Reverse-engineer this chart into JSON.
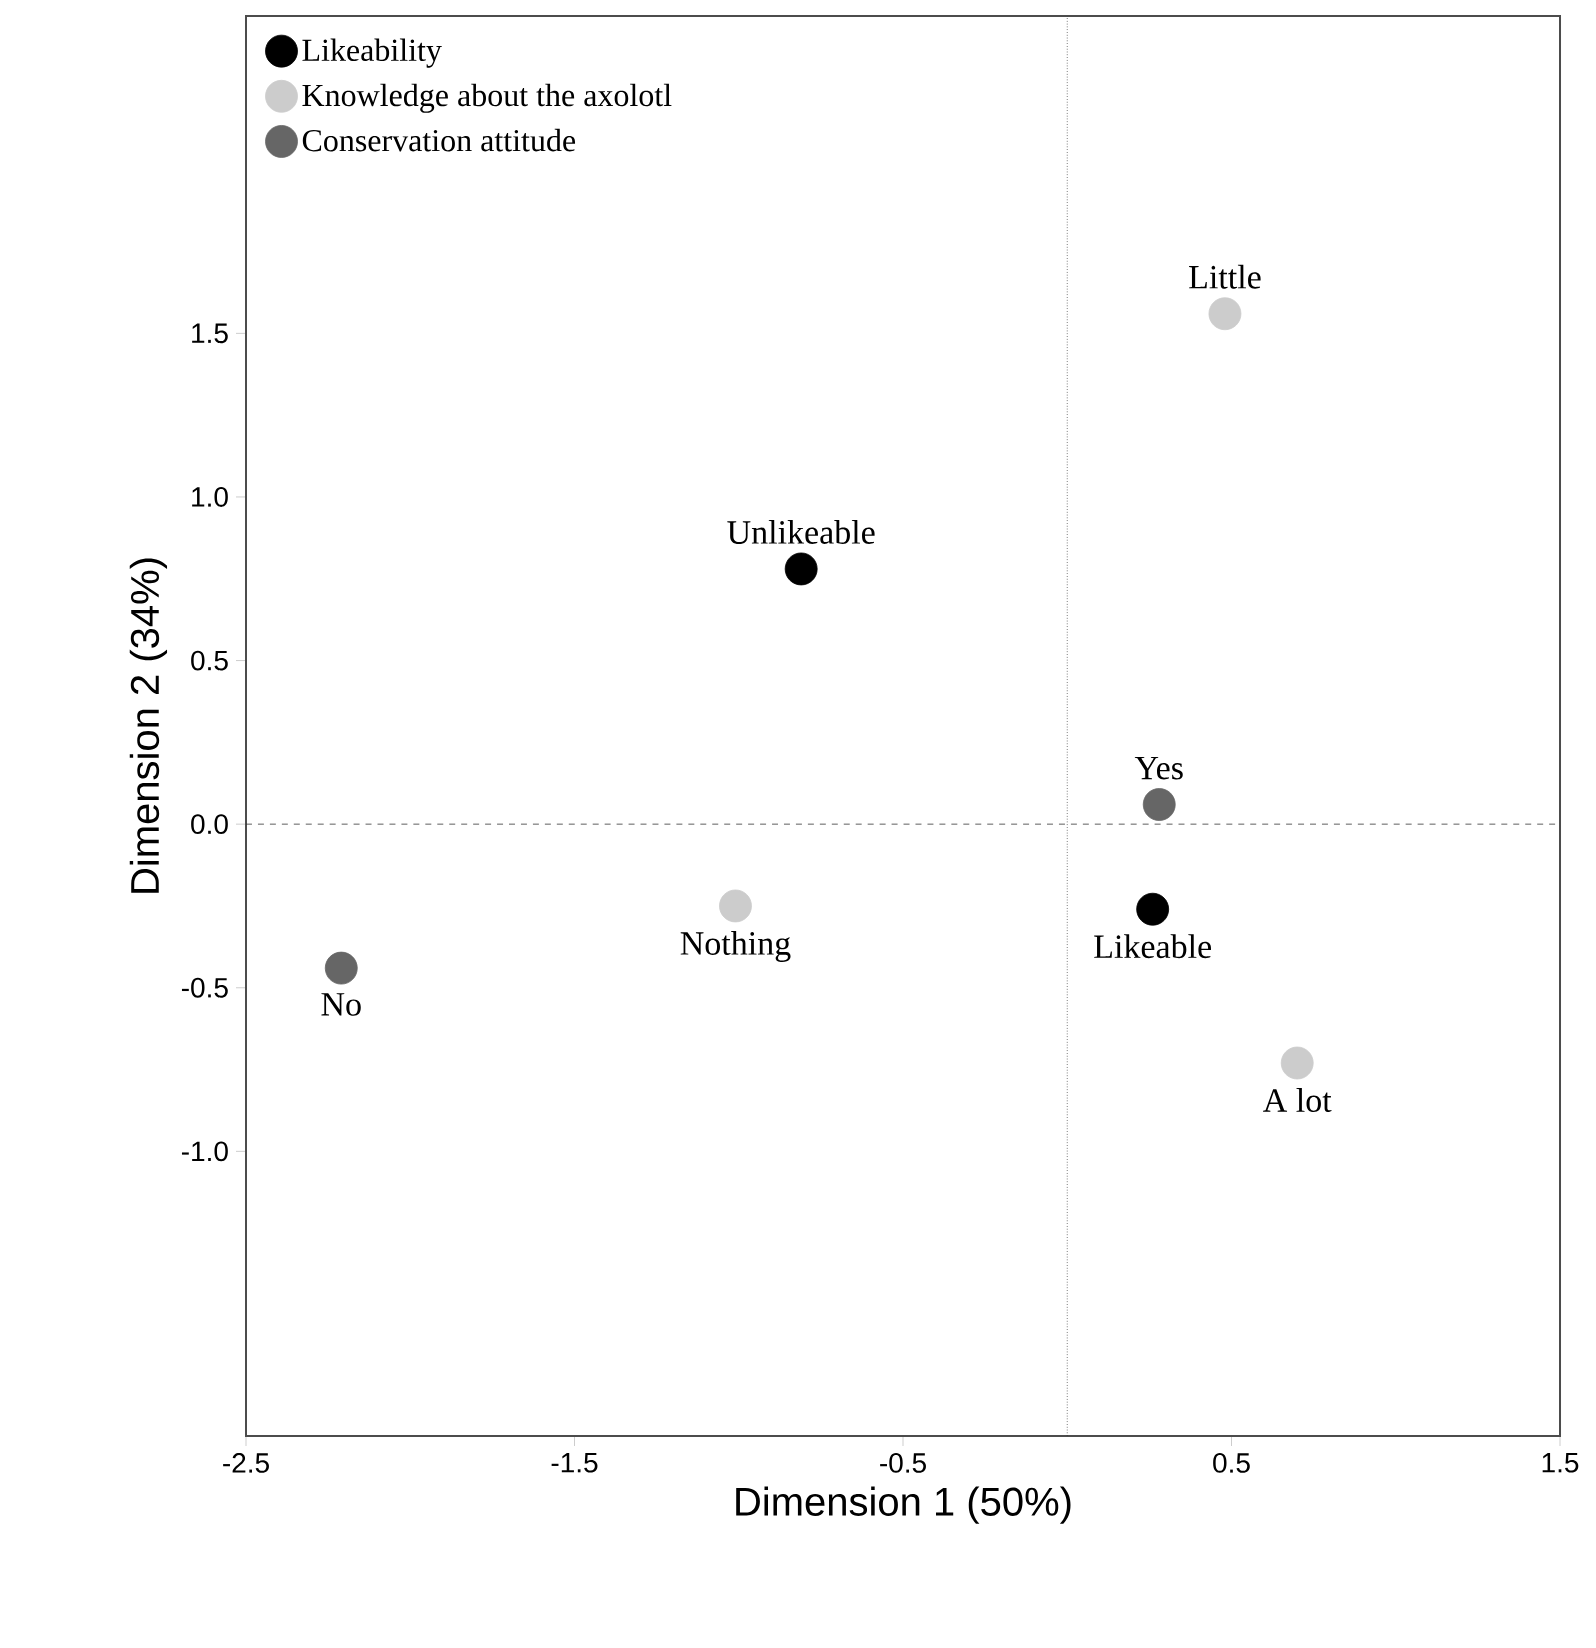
{
  "chart_data": {
    "type": "scatter",
    "xlabel": "Dimension 1 (50%)",
    "ylabel": "Dimension 2  (34%)",
    "xlim": [
      -2.5,
      1.5
    ],
    "ylim": [
      -1.87,
      2.47
    ],
    "xticks": [
      -2.5,
      -1.5,
      -0.5,
      0.5,
      1.5
    ],
    "yticks": [
      {
        "value": -1.0,
        "label": "-1.0"
      },
      {
        "value": -0.5,
        "label": "-0.5"
      },
      {
        "value": 0.0,
        "label": "0.0"
      },
      {
        "value": 0.5,
        "label": "0.5"
      },
      {
        "value": 1.0,
        "label": "1.0"
      },
      1.5
    ],
    "series": [
      {
        "name": "Likeability",
        "color": "#000000",
        "x": [
          -0.81,
          0.26
        ],
        "values": [
          0.78,
          -0.26
        ]
      },
      {
        "name": "Knowledge about the axolotl",
        "color": "#cccccc",
        "x": [
          0.48,
          -1.01,
          0.7
        ],
        "values": [
          1.56,
          -0.25,
          -0.73
        ]
      },
      {
        "name": "Conservation attitude",
        "color": "#666666",
        "x": [
          0.28,
          -2.21
        ],
        "values": [
          0.06,
          -0.44
        ]
      }
    ],
    "ref_lines": [
      {
        "axis": "y",
        "value": 0,
        "line_style": "dashed"
      },
      {
        "axis": "x",
        "value": 0,
        "line_style": "dotted"
      }
    ],
    "annotations": [
      {
        "text": "Unlikeable",
        "x": -0.81,
        "y": 0.78
      },
      {
        "text": "Likeable",
        "x": 0.26,
        "y": -0.26
      },
      {
        "text": "Little",
        "x": 0.48,
        "y": 1.56
      },
      {
        "text": "Nothing",
        "x": -1.01,
        "y": -0.25
      },
      {
        "text": "A lot",
        "x": 0.7,
        "y": -0.73
      },
      {
        "text": "Yes",
        "x": 0.28,
        "y": 0.06
      },
      {
        "text": "No",
        "x": -2.21,
        "y": -0.44
      }
    ],
    "marker": "circle",
    "legend": "top left",
    "grid": false
  }
}
